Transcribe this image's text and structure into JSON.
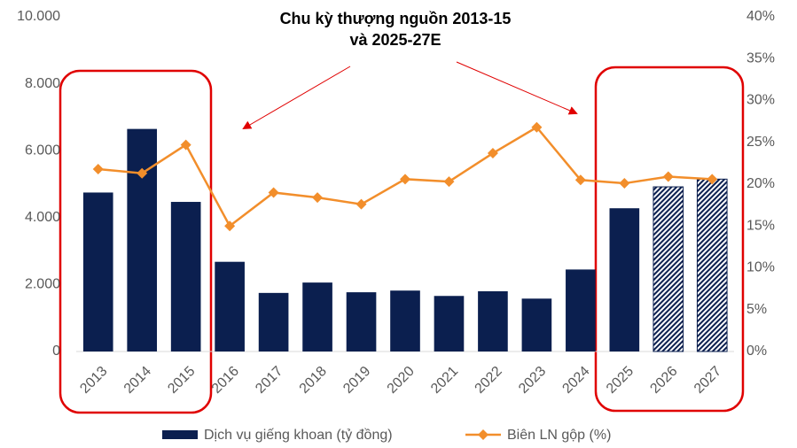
{
  "chart_data": {
    "type": "bar-line",
    "annotation": [
      "Chu kỳ thượng nguồn 2013-15",
      "và 2025-27E"
    ],
    "categories": [
      "2013",
      "2014",
      "2015",
      "2016",
      "2017",
      "2018",
      "2019",
      "2020",
      "2021",
      "2022",
      "2023",
      "2024",
      "2025",
      "2026",
      "2027"
    ],
    "series": [
      {
        "name": "Dịch vụ giếng khoan (tỷ đồng)",
        "type": "bar",
        "color": "#0b1f4f",
        "values": [
          4750,
          6650,
          4470,
          2680,
          1750,
          2060,
          1770,
          1820,
          1660,
          1800,
          1580,
          2450,
          4280,
          4920,
          5150
        ],
        "hatched": [
          false,
          false,
          false,
          false,
          false,
          false,
          false,
          false,
          false,
          false,
          false,
          false,
          false,
          true,
          true
        ]
      },
      {
        "name": "Biên LN gộp (%)",
        "type": "line",
        "axis": "y2",
        "color": "#f28e2b",
        "values": [
          21.8,
          21.3,
          24.7,
          15.0,
          19.0,
          18.4,
          17.6,
          20.6,
          20.3,
          23.7,
          26.8,
          20.5,
          20.1,
          20.9,
          20.6
        ]
      }
    ],
    "ylim": [
      0,
      10000
    ],
    "yticks": [
      0,
      {
        "value": 2000,
        "label": "2.000"
      },
      {
        "value": 4000,
        "label": "4.000"
      },
      {
        "value": 6000,
        "label": "6.000"
      },
      {
        "value": 8000,
        "label": "8.000"
      },
      {
        "value": 10000,
        "label": "10.000"
      }
    ],
    "y2lim": [
      0,
      40
    ],
    "y2ticks": [
      {
        "value": 0,
        "label": "0%"
      },
      {
        "value": 5,
        "label": "5%"
      },
      {
        "value": 10,
        "label": "10%"
      },
      {
        "value": 15,
        "label": "15%"
      },
      {
        "value": 20,
        "label": "20%"
      },
      {
        "value": 25,
        "label": "25%"
      },
      {
        "value": 30,
        "label": "30%"
      },
      {
        "value": 35,
        "label": "35%"
      },
      {
        "value": 40,
        "label": "40%"
      }
    ],
    "legend": "bottom",
    "grid": false
  }
}
